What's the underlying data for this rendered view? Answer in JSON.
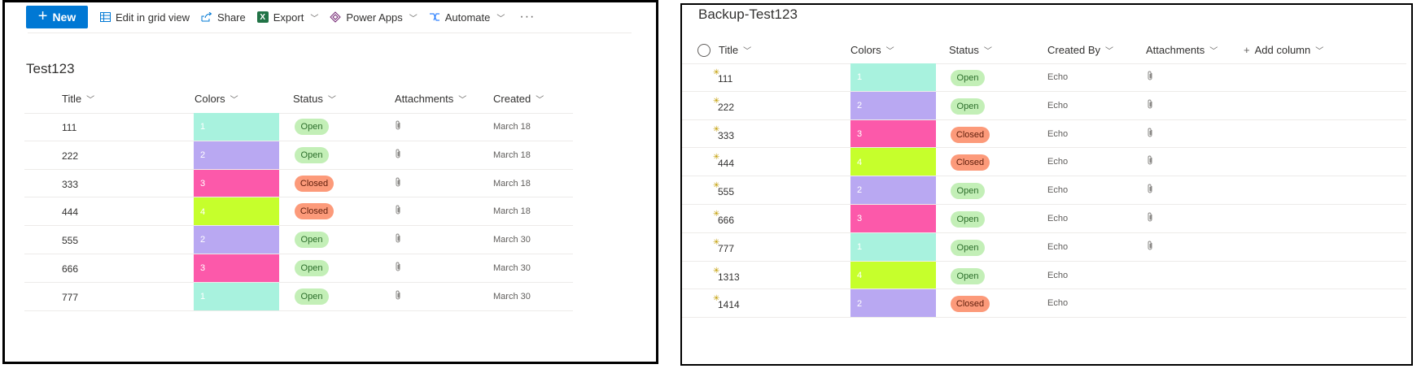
{
  "left": {
    "commandbar": {
      "new_label": "New",
      "edit_grid_label": "Edit in grid view",
      "share_label": "Share",
      "export_label": "Export",
      "powerapps_label": "Power Apps",
      "automate_label": "Automate",
      "more_label": "···"
    },
    "title": "Test123",
    "columns": [
      "Title",
      "Colors",
      "Status",
      "Attachments",
      "Created"
    ],
    "rows": [
      {
        "title": "111",
        "color": "1",
        "status": "Open",
        "created": "March 18"
      },
      {
        "title": "222",
        "color": "2",
        "status": "Open",
        "created": "March 18"
      },
      {
        "title": "333",
        "color": "3",
        "status": "Closed",
        "created": "March 18"
      },
      {
        "title": "444",
        "color": "4",
        "status": "Closed",
        "created": "March 18"
      },
      {
        "title": "555",
        "color": "2",
        "status": "Open",
        "created": "March 30"
      },
      {
        "title": "666",
        "color": "3",
        "status": "Open",
        "created": "March 30"
      },
      {
        "title": "777",
        "color": "1",
        "status": "Open",
        "created": "March 30"
      }
    ]
  },
  "right": {
    "title": "Backup-Test123",
    "columns": [
      "Title",
      "Colors",
      "Status",
      "Created By",
      "Attachments"
    ],
    "add_column_label": "Add column",
    "rows": [
      {
        "title": "111",
        "color": "1",
        "status": "Open",
        "created_by": "Echo",
        "attachment": true
      },
      {
        "title": "222",
        "color": "2",
        "status": "Open",
        "created_by": "Echo",
        "attachment": true
      },
      {
        "title": "333",
        "color": "3",
        "status": "Closed",
        "created_by": "Echo",
        "attachment": true
      },
      {
        "title": "444",
        "color": "4",
        "status": "Closed",
        "created_by": "Echo",
        "attachment": true
      },
      {
        "title": "555",
        "color": "2",
        "status": "Open",
        "created_by": "Echo",
        "attachment": true
      },
      {
        "title": "666",
        "color": "3",
        "status": "Open",
        "created_by": "Echo",
        "attachment": true
      },
      {
        "title": "777",
        "color": "1",
        "status": "Open",
        "created_by": "Echo",
        "attachment": true
      },
      {
        "title": "1313",
        "color": "4",
        "status": "Open",
        "created_by": "Echo",
        "attachment": false
      },
      {
        "title": "1414",
        "color": "2",
        "status": "Closed",
        "created_by": "Echo",
        "attachment": false
      }
    ]
  },
  "color_map": {
    "1": "#a8f2de",
    "2": "#b9a8f2",
    "3": "#fc59aa",
    "4": "#c6ff2c"
  },
  "accent_color": "#0078d4"
}
